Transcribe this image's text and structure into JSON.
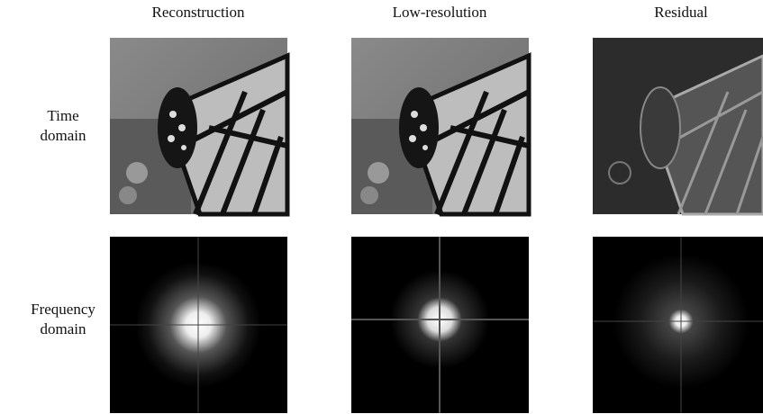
{
  "columns": [
    "Reconstruction",
    "Low-resolution",
    "Residual"
  ],
  "rows": [
    {
      "label": [
        "Time",
        "domain"
      ]
    },
    {
      "label": [
        "Frequency",
        "domain"
      ]
    }
  ]
}
